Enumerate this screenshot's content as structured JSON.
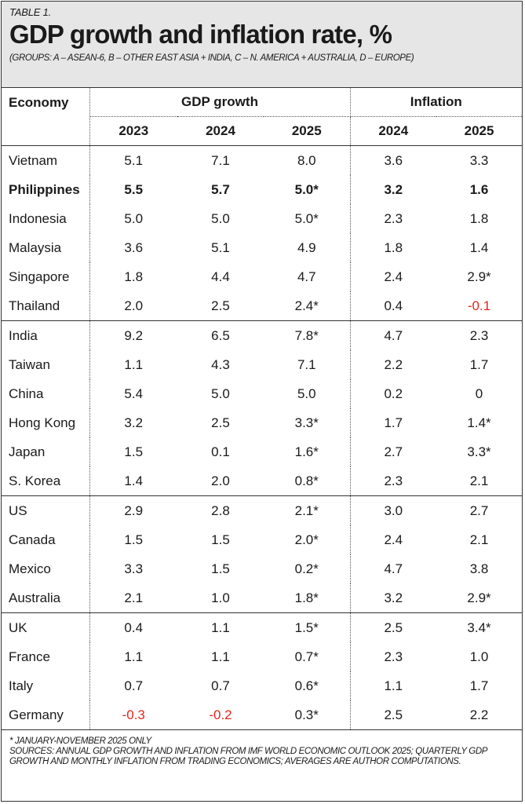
{
  "header": {
    "label": "TABLE 1.",
    "title": "GDP growth and inflation rate, %",
    "subtitle": "(GROUPS: A – ASEAN-6, B – OTHER EAST ASIA + INDIA, C – N. AMERICA + AUSTRALIA, D – EUROPE)"
  },
  "table": {
    "columns": {
      "economy": "Economy",
      "groups": [
        {
          "name": "GDP growth",
          "years": [
            "2023",
            "2024",
            "2025"
          ]
        },
        {
          "name": "Inflation",
          "years": [
            "2024",
            "2025"
          ]
        }
      ]
    },
    "negative_color": "#e0261d",
    "groups": [
      {
        "bold_row": 1,
        "rows": [
          [
            "Vietnam",
            "5.1",
            "7.1",
            "8.0",
            "3.6",
            "3.3"
          ],
          [
            "Philippines",
            "5.5",
            "5.7",
            "5.0*",
            "3.2",
            "1.6"
          ],
          [
            "Indonesia",
            "5.0",
            "5.0",
            "5.0*",
            "2.3",
            "1.8"
          ],
          [
            "Malaysia",
            "3.6",
            "5.1",
            "4.9",
            "1.8",
            "1.4"
          ],
          [
            "Singapore",
            "1.8",
            "4.4",
            "4.7",
            "2.4",
            "2.9*"
          ],
          [
            "Thailand",
            "2.0",
            "2.5",
            "2.4*",
            "0.4",
            "-0.1"
          ]
        ]
      },
      {
        "rows": [
          [
            "India",
            "9.2",
            "6.5",
            "7.8*",
            "4.7",
            "2.3"
          ],
          [
            "Taiwan",
            "1.1",
            "4.3",
            "7.1",
            "2.2",
            "1.7"
          ],
          [
            "China",
            "5.4",
            "5.0",
            "5.0",
            "0.2",
            "0"
          ],
          [
            "Hong Kong",
            "3.2",
            "2.5",
            "3.3*",
            "1.7",
            "1.4*"
          ],
          [
            "Japan",
            "1.5",
            "0.1",
            "1.6*",
            "2.7",
            "3.3*"
          ],
          [
            "S. Korea",
            "1.4",
            "2.0",
            "0.8*",
            "2.3",
            "2.1"
          ]
        ]
      },
      {
        "rows": [
          [
            "US",
            "2.9",
            "2.8",
            "2.1*",
            "3.0",
            "2.7"
          ],
          [
            "Canada",
            "1.5",
            "1.5",
            "2.0*",
            "2.4",
            "2.1"
          ],
          [
            "Mexico",
            "3.3",
            "1.5",
            "0.2*",
            "4.7",
            "3.8"
          ],
          [
            "Australia",
            "2.1",
            "1.0",
            "1.8*",
            "3.2",
            "2.9*"
          ]
        ]
      },
      {
        "rows": [
          [
            "UK",
            "0.4",
            "1.1",
            "1.5*",
            "2.5",
            "3.4*"
          ],
          [
            "France",
            "1.1",
            "1.1",
            "0.7*",
            "2.3",
            "1.0"
          ],
          [
            "Italy",
            "0.7",
            "0.7",
            "0.6*",
            "1.1",
            "1.7"
          ],
          [
            "Germany",
            "-0.3",
            "-0.2",
            "0.3*",
            "2.5",
            "2.2"
          ]
        ]
      }
    ]
  },
  "footer": {
    "note": "* JANUARY-NOVEMBER 2025 ONLY",
    "sources": "SOURCES: ANNUAL GDP GROWTH AND INFLATION FROM IMF WORLD ECONOMIC OUTLOOK 2025; QUARTERLY GDP GROWTH AND MONTHLY INFLATION FROM TRADING ECONOMICS; AVERAGES ARE AUTHOR COMPUTATIONS."
  }
}
